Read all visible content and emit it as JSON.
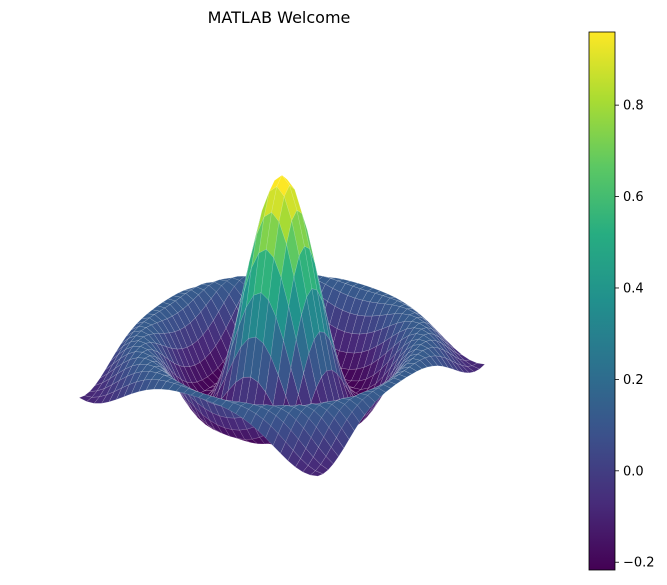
{
  "chart_data": {
    "type": "surface",
    "title": "MATLAB Welcome",
    "function": "sinc(r) = sin(r)/r",
    "x_range": [
      -8,
      8
    ],
    "y_range": [
      -8,
      8
    ],
    "grid_points": 33,
    "z_peak": 1.0,
    "z_min": -0.2,
    "colormap": "viridis",
    "axes_visible": false,
    "colorbar": {
      "position": "right",
      "vmin": -0.217,
      "vmax": 0.96,
      "ticks": [
        {
          "value": -0.2,
          "label": "−0.2"
        },
        {
          "value": 0.0,
          "label": "0.0"
        },
        {
          "value": 0.2,
          "label": "0.2"
        },
        {
          "value": 0.4,
          "label": "0.4"
        },
        {
          "value": 0.6,
          "label": "0.6"
        },
        {
          "value": 0.8,
          "label": "0.8"
        }
      ]
    }
  }
}
